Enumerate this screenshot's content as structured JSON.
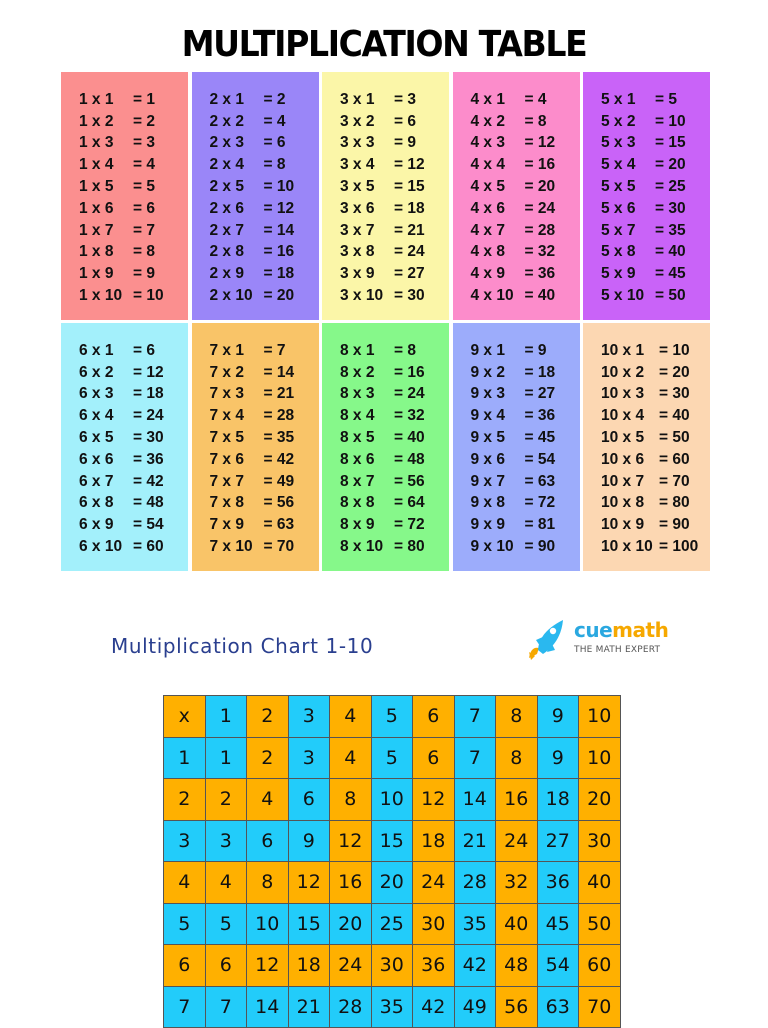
{
  "title": "MULTIPLICATION TABLE",
  "tables": [
    {
      "n": 1,
      "color": "#fb8f8f",
      "lines": [
        [
          "1 x 1",
          "= 1"
        ],
        [
          "1 x 2",
          "= 2"
        ],
        [
          "1 x 3",
          "= 3"
        ],
        [
          "1 x 4",
          "= 4"
        ],
        [
          "1 x 5",
          "= 5"
        ],
        [
          "1 x 6",
          "= 6"
        ],
        [
          "1 x 7",
          "= 7"
        ],
        [
          "1 x 8",
          "= 8"
        ],
        [
          "1 x 9",
          "= 9"
        ],
        [
          "1 x 10",
          "= 10"
        ]
      ]
    },
    {
      "n": 2,
      "color": "#9a86f8",
      "lines": [
        [
          "2 x 1",
          "= 2"
        ],
        [
          "2 x 2",
          "= 4"
        ],
        [
          "2 x 3",
          "= 6"
        ],
        [
          "2 x 4",
          "= 8"
        ],
        [
          "2 x 5",
          "= 10"
        ],
        [
          "2 x 6",
          "= 12"
        ],
        [
          "2 x 7",
          "= 14"
        ],
        [
          "2 x 8",
          "= 16"
        ],
        [
          "2 x 9",
          "= 18"
        ],
        [
          "2 x 10",
          "= 20"
        ]
      ]
    },
    {
      "n": 3,
      "color": "#fbf6a8",
      "lines": [
        [
          "3 x 1",
          "= 3"
        ],
        [
          "3 x 2",
          "= 6"
        ],
        [
          "3 x 3",
          "= 9"
        ],
        [
          "3 x 4",
          "= 12"
        ],
        [
          "3 x 5",
          "= 15"
        ],
        [
          "3 x 6",
          "= 18"
        ],
        [
          "3 x 7",
          "= 21"
        ],
        [
          "3 x 8",
          "= 24"
        ],
        [
          "3 x 9",
          "= 27"
        ],
        [
          "3 x 10",
          "= 30"
        ]
      ]
    },
    {
      "n": 4,
      "color": "#fc8ccb",
      "lines": [
        [
          "4 x 1",
          "= 4"
        ],
        [
          "4 x 2",
          "= 8"
        ],
        [
          "4 x 3",
          "= 12"
        ],
        [
          "4 x 4",
          "= 16"
        ],
        [
          "4 x 5",
          "= 20"
        ],
        [
          "4 x 6",
          "= 24"
        ],
        [
          "4 x 7",
          "= 28"
        ],
        [
          "4 x 8",
          "= 32"
        ],
        [
          "4 x 9",
          "= 36"
        ],
        [
          "4 x 10",
          "= 40"
        ]
      ]
    },
    {
      "n": 5,
      "color": "#c963f8",
      "lines": [
        [
          "5 x 1",
          "= 5"
        ],
        [
          "5 x 2",
          "= 10"
        ],
        [
          "5 x 3",
          "= 15"
        ],
        [
          "5 x 4",
          "= 20"
        ],
        [
          "5 x 5",
          "= 25"
        ],
        [
          "5 x 6",
          "= 30"
        ],
        [
          "5 x 7",
          "= 35"
        ],
        [
          "5 x 8",
          "= 40"
        ],
        [
          "5 x 9",
          "= 45"
        ],
        [
          "5 x 10",
          "= 50"
        ]
      ]
    },
    {
      "n": 6,
      "color": "#a3f0fb",
      "lines": [
        [
          "6 x 1",
          "= 6"
        ],
        [
          "6 x 2",
          "= 12"
        ],
        [
          "6 x 3",
          "= 18"
        ],
        [
          "6 x 4",
          "= 24"
        ],
        [
          "6 x 5",
          "= 30"
        ],
        [
          "6 x 6",
          "= 36"
        ],
        [
          "6 x 7",
          "= 42"
        ],
        [
          "6 x 8",
          "= 48"
        ],
        [
          "6 x 9",
          "= 54"
        ],
        [
          "6 x 10",
          "= 60"
        ]
      ]
    },
    {
      "n": 7,
      "color": "#f9c468",
      "lines": [
        [
          "7 x 1",
          "= 7"
        ],
        [
          "7 x 2",
          "= 14"
        ],
        [
          "7 x 3",
          "= 21"
        ],
        [
          "7 x 4",
          "= 28"
        ],
        [
          "7 x 5",
          "= 35"
        ],
        [
          "7 x 6",
          "= 42"
        ],
        [
          "7 x 7",
          "= 49"
        ],
        [
          "7 x 8",
          "= 56"
        ],
        [
          "7 x 9",
          "= 63"
        ],
        [
          "7 x 10",
          "= 70"
        ]
      ]
    },
    {
      "n": 8,
      "color": "#86f88a",
      "lines": [
        [
          "8 x 1",
          "= 8"
        ],
        [
          "8 x 2",
          "= 16"
        ],
        [
          "8 x 3",
          "= 24"
        ],
        [
          "8 x 4",
          "= 32"
        ],
        [
          "8 x 5",
          "= 40"
        ],
        [
          "8 x 6",
          "= 48"
        ],
        [
          "8 x 7",
          "= 56"
        ],
        [
          "8 x 8",
          "= 64"
        ],
        [
          "8 x 9",
          "= 72"
        ],
        [
          "8 x 10",
          "= 80"
        ]
      ]
    },
    {
      "n": 9,
      "color": "#9cacfb",
      "lines": [
        [
          "9 x 1",
          "= 9"
        ],
        [
          "9 x 2",
          "= 18"
        ],
        [
          "9 x 3",
          "= 27"
        ],
        [
          "9 x 4",
          "= 36"
        ],
        [
          "9 x 5",
          "= 45"
        ],
        [
          "9 x 6",
          "= 54"
        ],
        [
          "9 x 7",
          "= 63"
        ],
        [
          "9 x 8",
          "= 72"
        ],
        [
          "9 x 9",
          "= 81"
        ],
        [
          "9 x 10",
          "= 90"
        ]
      ]
    },
    {
      "n": 10,
      "color": "#fcd7b2",
      "lines": [
        [
          "10 x 1",
          "= 10"
        ],
        [
          "10 x 2",
          "= 20"
        ],
        [
          "10 x 3",
          "= 30"
        ],
        [
          "10 x 4",
          "= 40"
        ],
        [
          "10 x 5",
          "= 50"
        ],
        [
          "10 x 6",
          "= 60"
        ],
        [
          "10 x 7",
          "= 70"
        ],
        [
          "10 x 8",
          "= 80"
        ],
        [
          "10 x 9",
          "= 90"
        ],
        [
          "10 x 10",
          "= 100"
        ]
      ]
    }
  ],
  "chart": {
    "title": "Multiplication Chart 1-10",
    "brand": {
      "cue": "cue",
      "math": "math",
      "tagline": "THE MATH EXPERT",
      "icon": "rocket-icon"
    },
    "colors": {
      "even": "#ffb000",
      "odd": "#22ccfa"
    },
    "header": [
      "x",
      "1",
      "2",
      "3",
      "4",
      "5",
      "6",
      "7",
      "8",
      "9",
      "10"
    ],
    "rows": [
      [
        "1",
        "1",
        "2",
        "3",
        "4",
        "5",
        "6",
        "7",
        "8",
        "9",
        "10"
      ],
      [
        "2",
        "2",
        "4",
        "6",
        "8",
        "10",
        "12",
        "14",
        "16",
        "18",
        "20"
      ],
      [
        "3",
        "3",
        "6",
        "9",
        "12",
        "15",
        "18",
        "21",
        "24",
        "27",
        "30"
      ],
      [
        "4",
        "4",
        "8",
        "12",
        "16",
        "20",
        "24",
        "28",
        "32",
        "36",
        "40"
      ],
      [
        "5",
        "5",
        "10",
        "15",
        "20",
        "25",
        "30",
        "35",
        "40",
        "45",
        "50"
      ],
      [
        "6",
        "6",
        "12",
        "18",
        "24",
        "30",
        "36",
        "42",
        "48",
        "54",
        "60"
      ],
      [
        "7",
        "7",
        "14",
        "21",
        "28",
        "35",
        "42",
        "49",
        "56",
        "63",
        "70"
      ]
    ]
  }
}
